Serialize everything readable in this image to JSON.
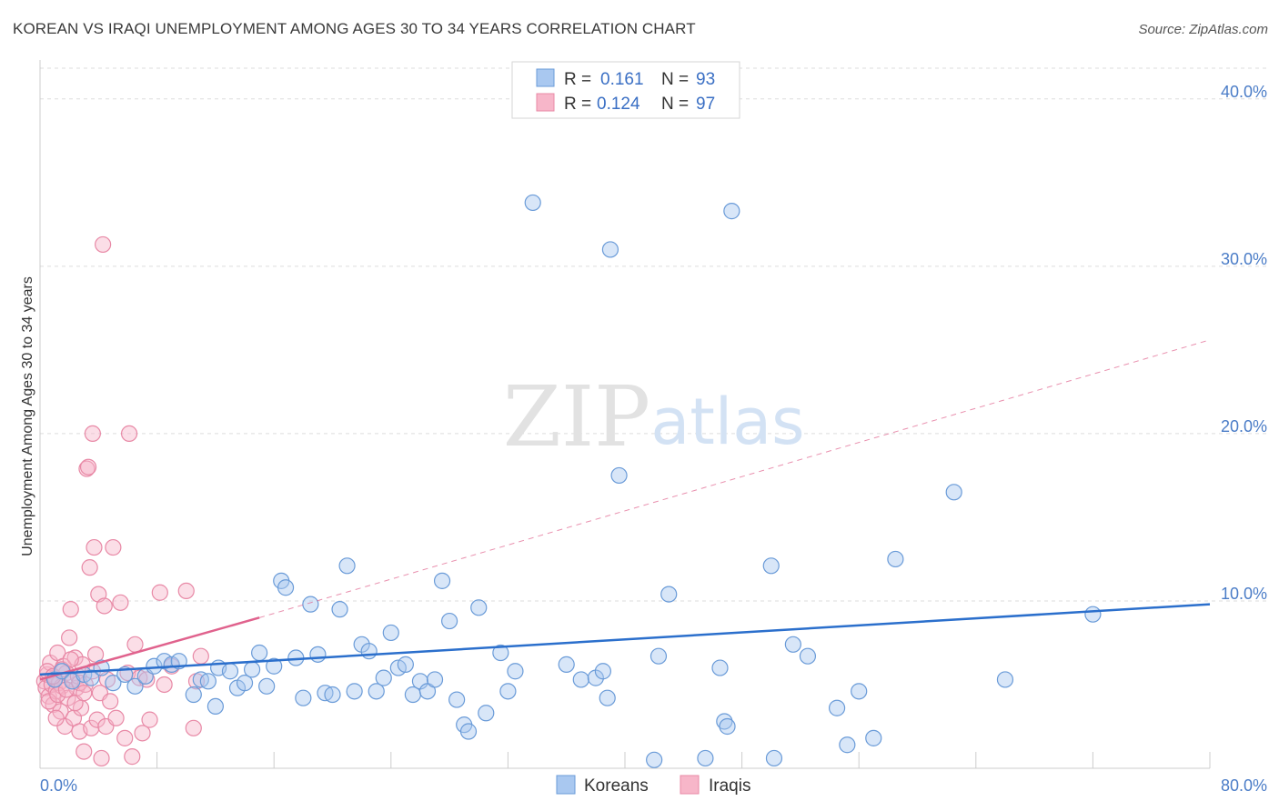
{
  "title": "KOREAN VS IRAQI UNEMPLOYMENT AMONG AGES 30 TO 34 YEARS CORRELATION CHART",
  "source": "Source: ZipAtlas.com",
  "watermark": {
    "zip": "ZIP",
    "atlas": "atlas"
  },
  "chart_data": {
    "type": "scatter",
    "title": "KOREAN VS IRAQI UNEMPLOYMENT AMONG AGES 30 TO 34 YEARS CORRELATION CHART",
    "xlabel": "",
    "ylabel": "Unemployment Among Ages 30 to 34 years",
    "xlim": [
      0,
      80
    ],
    "ylim": [
      0,
      42
    ],
    "x_tick_labels": [
      "0.0%",
      "80.0%"
    ],
    "y_ticks": [
      10,
      20,
      30,
      40
    ],
    "y_tick_labels": [
      "10.0%",
      "20.0%",
      "30.0%",
      "40.0%"
    ],
    "grid": true,
    "legend": {
      "placement": "top-center",
      "entries": [
        {
          "r_label": "R =",
          "r_value": "0.161",
          "n_label": "N =",
          "n_value": "93"
        },
        {
          "r_label": "R =",
          "r_value": "0.124",
          "n_label": "N =",
          "n_value": "97"
        }
      ]
    },
    "bottom_legend": [
      "Koreans",
      "Iraqis"
    ],
    "colors": {
      "koreans_fill": "#a9c8f0",
      "koreans_stroke": "#6a9bd8",
      "koreans_line": "#2b6fcc",
      "iraqis_fill": "#f7b6c9",
      "iraqis_stroke": "#e889a6",
      "iraqis_line": "#e0628d",
      "grid": "#dddddd",
      "tick": "#4a7cc7"
    },
    "series": [
      {
        "name": "Koreans",
        "trend": {
          "x": [
            0,
            80
          ],
          "y": [
            5.6,
            9.8
          ],
          "style": "solid"
        },
        "points": [
          [
            1.0,
            5.3
          ],
          [
            1.5,
            5.8
          ],
          [
            2.2,
            5.2
          ],
          [
            3.0,
            5.6
          ],
          [
            3.5,
            5.4
          ],
          [
            4.2,
            6.0
          ],
          [
            5.0,
            5.1
          ],
          [
            5.8,
            5.6
          ],
          [
            6.5,
            4.9
          ],
          [
            7.2,
            5.5
          ],
          [
            7.8,
            6.1
          ],
          [
            8.5,
            6.4
          ],
          [
            9.0,
            6.2
          ],
          [
            9.5,
            6.4
          ],
          [
            10.5,
            4.4
          ],
          [
            11.0,
            5.3
          ],
          [
            11.5,
            5.2
          ],
          [
            12.0,
            3.7
          ],
          [
            12.2,
            6.0
          ],
          [
            13.0,
            5.8
          ],
          [
            13.5,
            4.8
          ],
          [
            14.0,
            5.1
          ],
          [
            14.5,
            5.9
          ],
          [
            15.0,
            6.9
          ],
          [
            15.5,
            4.9
          ],
          [
            16.0,
            6.1
          ],
          [
            16.5,
            11.2
          ],
          [
            16.8,
            10.8
          ],
          [
            17.5,
            6.6
          ],
          [
            18.0,
            4.2
          ],
          [
            18.5,
            9.8
          ],
          [
            19.0,
            6.8
          ],
          [
            19.5,
            4.5
          ],
          [
            20.0,
            4.4
          ],
          [
            20.5,
            9.5
          ],
          [
            21.0,
            12.1
          ],
          [
            21.5,
            4.6
          ],
          [
            22.0,
            7.4
          ],
          [
            22.5,
            7.0
          ],
          [
            23.0,
            4.6
          ],
          [
            23.5,
            5.4
          ],
          [
            24.0,
            8.1
          ],
          [
            24.5,
            6.0
          ],
          [
            25.0,
            6.2
          ],
          [
            25.5,
            4.4
          ],
          [
            26.0,
            5.2
          ],
          [
            26.5,
            4.6
          ],
          [
            27.0,
            5.3
          ],
          [
            27.5,
            11.2
          ],
          [
            28.0,
            8.8
          ],
          [
            28.5,
            4.1
          ],
          [
            29.0,
            2.6
          ],
          [
            29.3,
            2.2
          ],
          [
            30.0,
            9.6
          ],
          [
            30.5,
            3.3
          ],
          [
            31.5,
            6.9
          ],
          [
            32.0,
            4.6
          ],
          [
            32.5,
            5.8
          ],
          [
            33.7,
            33.8
          ],
          [
            36.0,
            6.2
          ],
          [
            37.0,
            5.3
          ],
          [
            38.0,
            5.4
          ],
          [
            38.5,
            5.8
          ],
          [
            38.8,
            4.2
          ],
          [
            39.0,
            31.0
          ],
          [
            39.6,
            17.5
          ],
          [
            42.0,
            0.5
          ],
          [
            42.3,
            6.7
          ],
          [
            43.0,
            10.4
          ],
          [
            45.5,
            0.6
          ],
          [
            46.5,
            6.0
          ],
          [
            46.8,
            2.8
          ],
          [
            47.0,
            2.5
          ],
          [
            47.3,
            33.3
          ],
          [
            50.0,
            12.1
          ],
          [
            50.2,
            0.6
          ],
          [
            51.5,
            7.4
          ],
          [
            52.5,
            6.7
          ],
          [
            54.5,
            3.6
          ],
          [
            55.2,
            1.4
          ],
          [
            56.0,
            4.6
          ],
          [
            57.0,
            1.8
          ],
          [
            58.5,
            12.5
          ],
          [
            62.5,
            16.5
          ],
          [
            66.0,
            5.3
          ],
          [
            72.0,
            9.2
          ]
        ]
      },
      {
        "name": "Iraqis",
        "trend": {
          "x": [
            0,
            15
          ],
          "y": [
            5.3,
            9.0
          ],
          "style": "solid",
          "extension": {
            "x": [
              15,
              80
            ],
            "y": [
              9.0,
              25.6
            ],
            "style": "dashed"
          }
        },
        "points": [
          [
            0.3,
            5.2
          ],
          [
            0.4,
            4.8
          ],
          [
            0.5,
            5.6
          ],
          [
            0.6,
            4.3
          ],
          [
            0.7,
            6.3
          ],
          [
            0.8,
            5.0
          ],
          [
            0.9,
            3.8
          ],
          [
            1.0,
            5.4
          ],
          [
            1.1,
            4.6
          ],
          [
            1.2,
            6.9
          ],
          [
            1.3,
            5.1
          ],
          [
            1.4,
            3.4
          ],
          [
            1.5,
            4.9
          ],
          [
            1.6,
            6.1
          ],
          [
            1.7,
            2.5
          ],
          [
            1.8,
            5.7
          ],
          [
            1.9,
            4.2
          ],
          [
            2.0,
            7.8
          ],
          [
            2.1,
            9.5
          ],
          [
            2.2,
            5.3
          ],
          [
            2.3,
            3.0
          ],
          [
            2.4,
            6.6
          ],
          [
            2.5,
            4.8
          ],
          [
            2.6,
            5.5
          ],
          [
            2.7,
            2.2
          ],
          [
            2.8,
            3.6
          ],
          [
            2.9,
            6.2
          ],
          [
            3.0,
            1.0
          ],
          [
            3.1,
            5.0
          ],
          [
            3.2,
            17.9
          ],
          [
            3.3,
            18.0
          ],
          [
            3.4,
            12.0
          ],
          [
            3.5,
            2.4
          ],
          [
            3.6,
            5.8
          ],
          [
            3.7,
            13.2
          ],
          [
            3.8,
            6.8
          ],
          [
            3.9,
            2.9
          ],
          [
            4.0,
            10.4
          ],
          [
            4.1,
            4.5
          ],
          [
            4.2,
            0.6
          ],
          [
            4.3,
            31.3
          ],
          [
            4.4,
            9.7
          ],
          [
            4.5,
            2.5
          ],
          [
            4.6,
            5.3
          ],
          [
            4.8,
            4.0
          ],
          [
            5.0,
            13.2
          ],
          [
            5.2,
            3.0
          ],
          [
            5.5,
            9.9
          ],
          [
            5.8,
            1.8
          ],
          [
            6.0,
            5.7
          ],
          [
            6.3,
            0.7
          ],
          [
            6.5,
            7.4
          ],
          [
            6.8,
            5.4
          ],
          [
            7.0,
            2.1
          ],
          [
            7.3,
            5.3
          ],
          [
            7.5,
            2.9
          ],
          [
            3.6,
            20.0
          ],
          [
            6.1,
            20.0
          ],
          [
            8.2,
            10.5
          ],
          [
            8.5,
            5.0
          ],
          [
            9.0,
            6.1
          ],
          [
            10.0,
            10.6
          ],
          [
            10.5,
            2.4
          ],
          [
            10.7,
            5.2
          ],
          [
            11.0,
            6.7
          ],
          [
            0.5,
            5.8
          ],
          [
            0.6,
            4.0
          ],
          [
            0.9,
            5.5
          ],
          [
            1.2,
            4.4
          ],
          [
            1.5,
            5.9
          ],
          [
            1.8,
            4.7
          ],
          [
            2.1,
            6.5
          ],
          [
            2.4,
            3.9
          ],
          [
            2.7,
            5.1
          ],
          [
            3.0,
            4.5
          ],
          [
            1.1,
            3.0
          ]
        ]
      }
    ]
  }
}
